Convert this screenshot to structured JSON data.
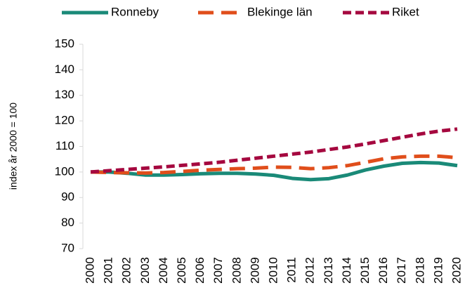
{
  "chart_data": {
    "type": "line",
    "y_label": "index år 2000 = 100",
    "categories": [
      "2000",
      "2001",
      "2002",
      "2003",
      "2004",
      "2005",
      "2006",
      "2007",
      "2008",
      "2009",
      "2010",
      "2011",
      "2012",
      "2013",
      "2014",
      "2015",
      "2016",
      "2017",
      "2018",
      "2019",
      "2020"
    ],
    "series": [
      {
        "name": "Ronneby",
        "color": "#1a8a78",
        "dash": "solid",
        "values": [
          100,
          100,
          99.5,
          98.8,
          98.8,
          99,
          99.3,
          99.5,
          99.5,
          99.2,
          98.7,
          97.5,
          97,
          97.4,
          98.8,
          100.8,
          102.3,
          103.4,
          103.7,
          103.5,
          102.5
        ]
      },
      {
        "name": "Blekinge län",
        "color": "#e04e1b",
        "dash": "long",
        "values": [
          100,
          99.8,
          99.7,
          99.6,
          99.8,
          100.2,
          100.7,
          101,
          101.3,
          101.5,
          101.9,
          101.8,
          101.3,
          101.7,
          102.5,
          103.8,
          105.2,
          105.9,
          106.2,
          106.2,
          105.6
        ]
      },
      {
        "name": "Riket",
        "color": "#a5083f",
        "dash": "short",
        "values": [
          100,
          100.5,
          101,
          101.5,
          102,
          102.6,
          103.2,
          103.8,
          104.6,
          105.4,
          106.2,
          107,
          107.8,
          108.8,
          109.8,
          111,
          112.3,
          113.6,
          114.9,
          116,
          116.8
        ]
      }
    ],
    "ylim": [
      70,
      150
    ],
    "yticks": [
      70,
      80,
      90,
      100,
      110,
      120,
      130,
      140,
      150
    ],
    "legend": "top",
    "grid": false
  }
}
